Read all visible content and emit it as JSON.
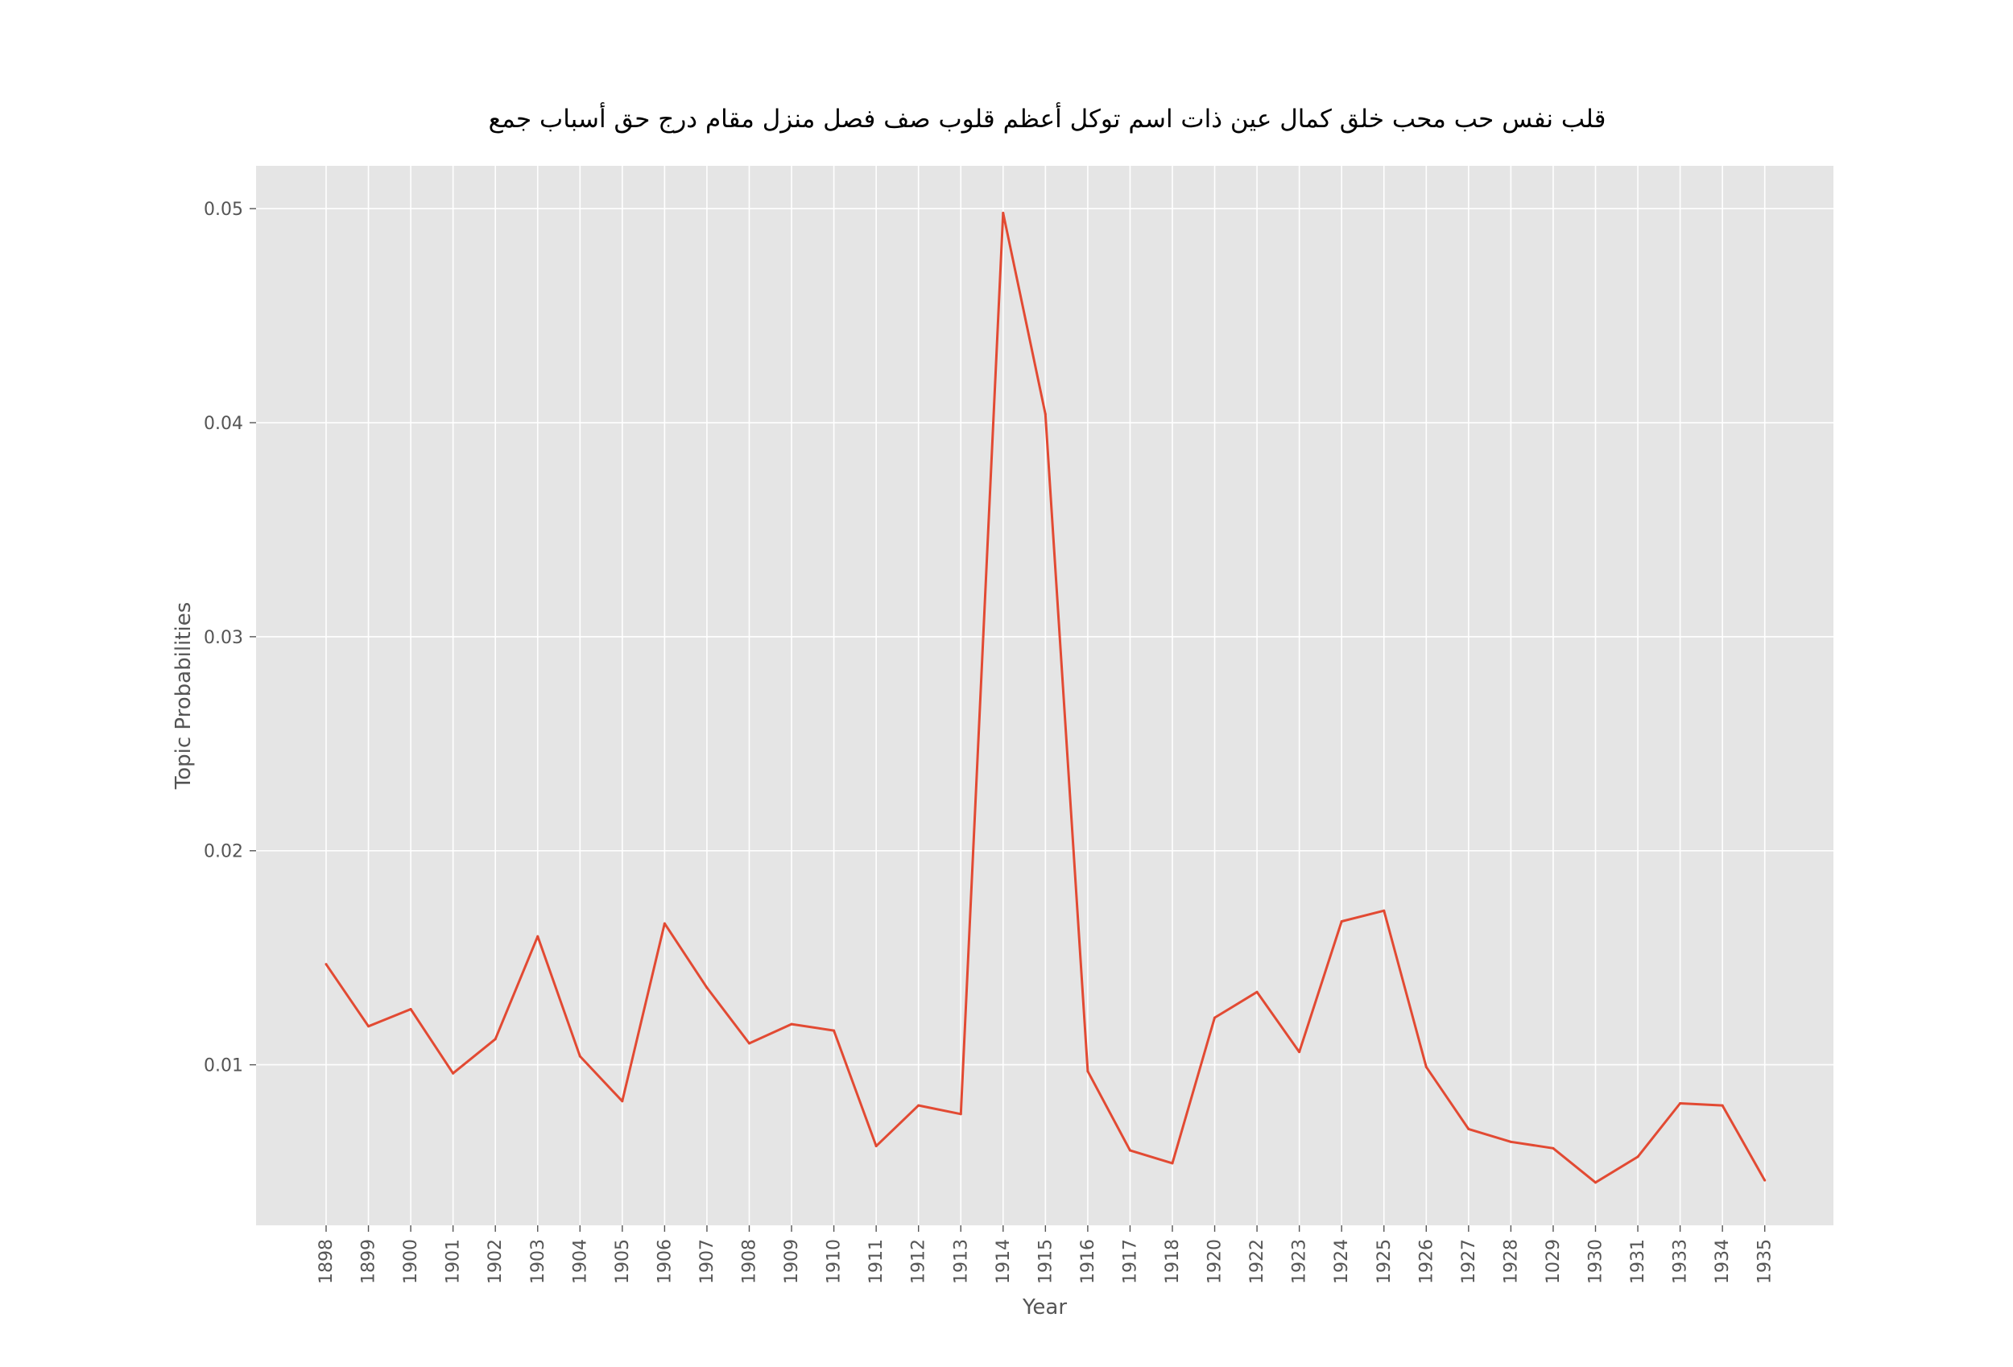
{
  "chart_data": {
    "type": "line",
    "title": "قلب نفس حب محب خلق كمال عين ذات اسم توكل أعظم قلوب صف فصل منزل مقام درج حق أسباب جمع",
    "xlabel": "Year",
    "ylabel": "Topic Probabilities",
    "categories": [
      "1898",
      "1899",
      "1900",
      "1901",
      "1902",
      "1903",
      "1904",
      "1905",
      "1906",
      "1907",
      "1908",
      "1909",
      "1910",
      "1911",
      "1912",
      "1913",
      "1914",
      "1915",
      "1916",
      "1917",
      "1918",
      "1920",
      "1922",
      "1923",
      "1924",
      "1925",
      "1926",
      "1927",
      "1928",
      "1029",
      "1930",
      "1931",
      "1933",
      "1934",
      "1935"
    ],
    "series": [
      {
        "color": "#e24a33",
        "values": [
          0.0147,
          0.0118,
          0.0126,
          0.0096,
          0.0112,
          0.016,
          0.0104,
          0.0083,
          0.0166,
          0.0136,
          0.011,
          0.0119,
          0.0116,
          0.0062,
          0.0081,
          0.0077,
          0.0498,
          0.0404,
          0.0097,
          0.006,
          0.0054,
          0.0122,
          0.0134,
          0.0106,
          0.0167,
          0.0172,
          0.0099,
          0.007,
          0.0064,
          0.0061,
          0.0045,
          0.0057,
          0.0082,
          0.0081,
          0.0046
        ]
      }
    ],
    "yticks": [
      "0.01",
      "0.02",
      "0.03",
      "0.04",
      "0.05"
    ],
    "ylim": [
      0.0025,
      0.052
    ],
    "grid": true,
    "style": {
      "background": "#e5e5e5",
      "grid_color": "#ffffff",
      "text_color": "#555555",
      "title_color": "#000000"
    }
  }
}
